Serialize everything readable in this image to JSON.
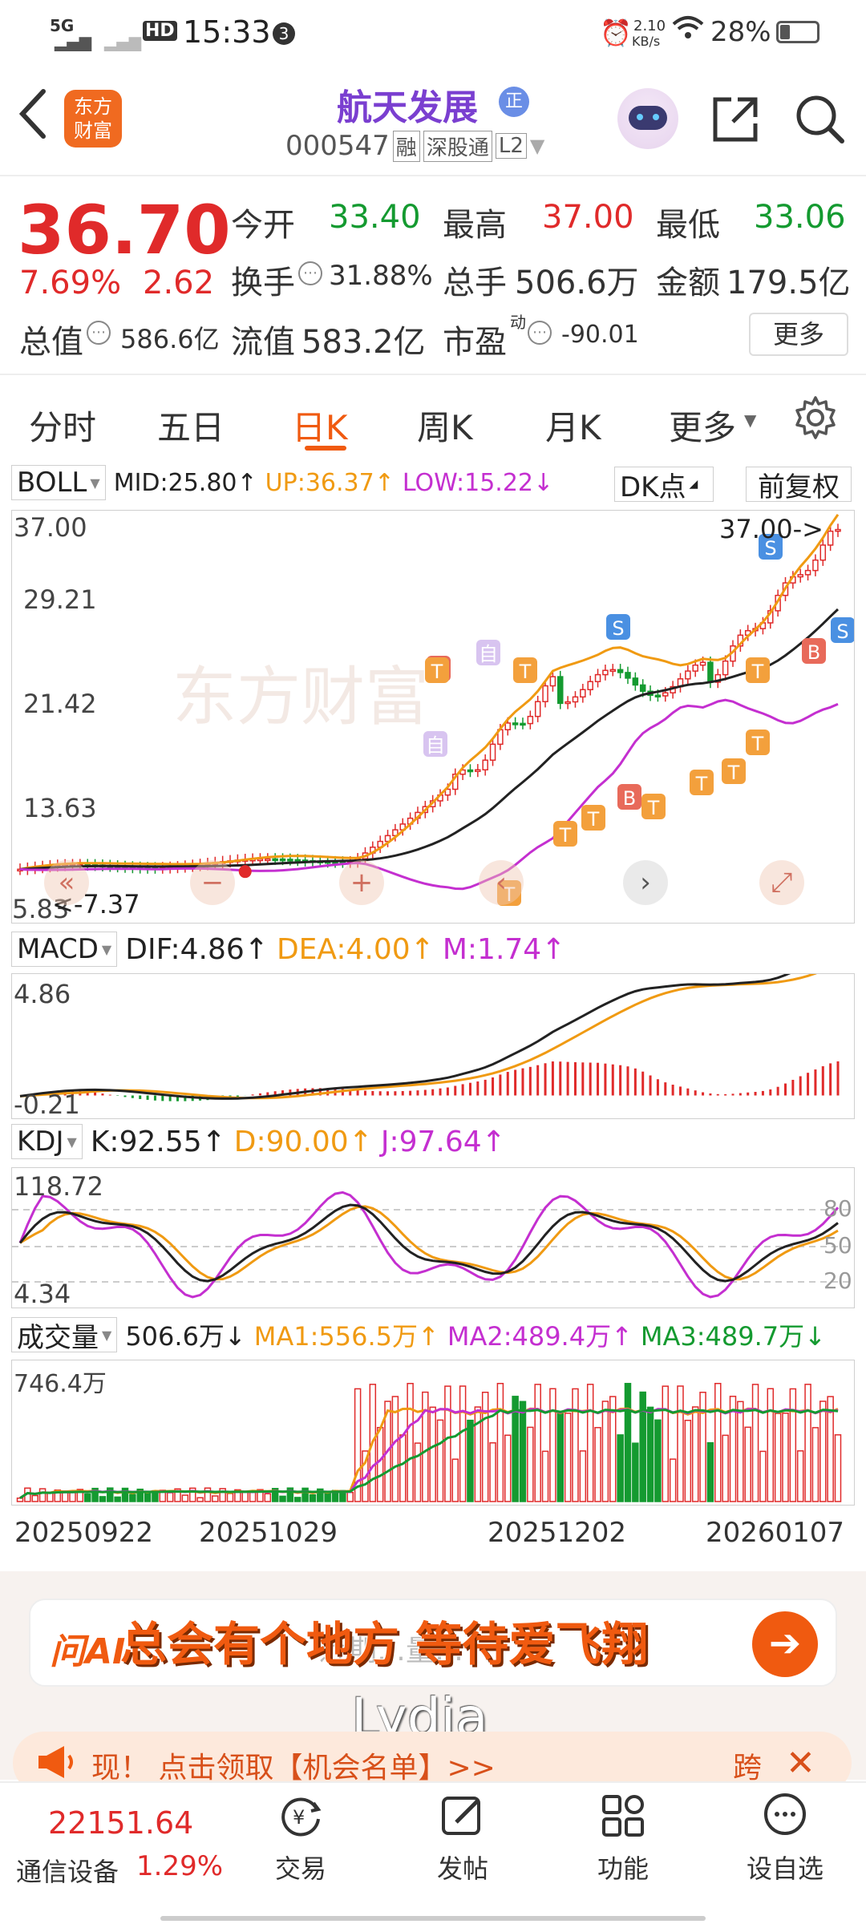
{
  "status_bar": {
    "network": "5G",
    "time": "15:33",
    "notif_count": "3",
    "speed_value": "2.10",
    "speed_unit": "KB/s",
    "battery": "28%"
  },
  "header": {
    "title": "航天发展",
    "badge": "正",
    "logo_line1": "东方",
    "logo_line2": "财富",
    "code": "000547",
    "tag_rong": "融",
    "tag_sgt": "深股通",
    "tag_l2": "L2"
  },
  "quote": {
    "price": "36.70",
    "change_pct": "7.69%",
    "change_amt": "2.62",
    "open_label": "今开",
    "open": "33.40",
    "high_label": "最高",
    "high": "37.00",
    "low_label": "最低",
    "low": "33.06",
    "turnover_label": "换手",
    "turnover": "31.88%",
    "volume_label": "总手",
    "volume": "506.6万",
    "amount_label": "金额",
    "amount": "179.5亿",
    "mktcap_label": "总值",
    "mktcap": "586.6亿",
    "float_label": "流值",
    "float_cap": "583.2亿",
    "pe_label": "市盈",
    "pe_sup": "动",
    "pe": "-90.01",
    "more_btn": "更多"
  },
  "tabs": [
    {
      "label": "分时"
    },
    {
      "label": "五日"
    },
    {
      "label": "日K"
    },
    {
      "label": "周K"
    },
    {
      "label": "月K"
    },
    {
      "label": "更多"
    }
  ],
  "boll": {
    "name": "BOLL",
    "mid": "MID:25.80↑",
    "up": "UP:36.37↑",
    "low": "LOW:15.22↓",
    "dk_btn": "DK点",
    "fq_btn": "前复权",
    "y_ticks": [
      "37.00",
      "29.21",
      "21.42",
      "13.63",
      "5.83"
    ],
    "high_marker": "37.00->",
    "low_marker": "<-7.37",
    "watermark": "东方财富",
    "signal_self": "自",
    "signal_b": "B",
    "signal_s": "S",
    "signal_t": "T"
  },
  "macd": {
    "name": "MACD",
    "dif": "DIF:4.86↑",
    "dea": "DEA:4.00↑",
    "m": "M:1.74↑",
    "y_ticks": [
      "4.86",
      "-0.21"
    ]
  },
  "kdj": {
    "name": "KDJ",
    "k": "K:92.55↑",
    "d": "D:90.00↑",
    "j": "J:97.64↑",
    "y_ticks": [
      "118.72",
      "4.34"
    ],
    "ref_lines": [
      "80",
      "50",
      "20"
    ]
  },
  "vol": {
    "name": "成交量",
    "current": "506.6万↓",
    "ma1": "MA1:556.5万↑",
    "ma2": "MA2:489.4万↑",
    "ma3": "MA3:489.7万↓",
    "y_top": "746.4万"
  },
  "dates": [
    "20250922",
    "20251029",
    "20251202",
    "20260107"
  ],
  "ai_bar": {
    "logo": "问AI",
    "hint": "近期…量…",
    "overlay_text": "总会有个地方 等待爱飞翔",
    "watermark": "Lydia"
  },
  "promo": {
    "text": "现！ 点击领取【机会名单】>>",
    "jump": "跨"
  },
  "bottom_nav": {
    "index_value": "22151.64",
    "index_name": "通信设备",
    "index_pct": "1.29%",
    "items": [
      {
        "label": "交易"
      },
      {
        "label": "发帖"
      },
      {
        "label": "功能"
      },
      {
        "label": "设自选"
      }
    ]
  },
  "colors": {
    "up_red": "#e02a2a",
    "down_green": "#149a30",
    "accent_orange": "#f05a10",
    "dea_orange": "#f09a12",
    "magenta": "#c42fd0"
  }
}
